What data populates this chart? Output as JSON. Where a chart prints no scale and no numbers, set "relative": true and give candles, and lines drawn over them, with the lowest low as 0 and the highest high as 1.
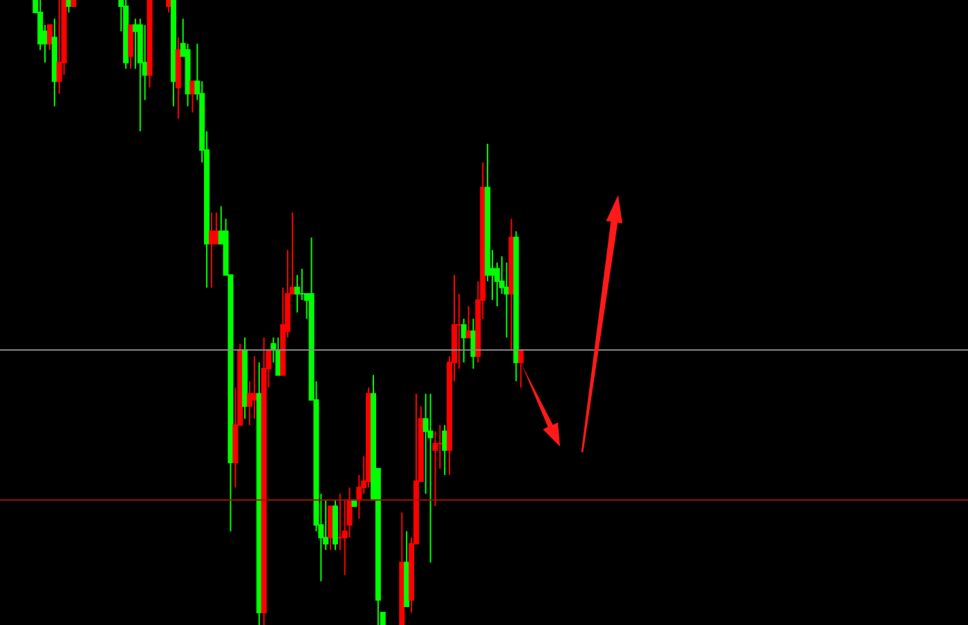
{
  "chart_data": {
    "type": "candlestick",
    "relative": true,
    "categories": [
      null,
      null,
      null,
      null,
      null,
      null,
      null,
      null,
      null,
      null,
      null,
      null,
      null,
      null,
      null,
      null,
      null,
      null,
      null,
      null,
      null,
      null,
      null,
      null,
      null,
      null,
      null,
      null,
      null,
      null,
      null,
      null,
      null,
      null,
      null,
      null,
      null,
      null,
      null,
      null,
      null,
      null,
      null,
      null,
      null,
      null,
      null,
      null,
      null,
      null,
      null,
      null,
      null,
      null,
      null,
      null,
      null,
      null,
      null,
      null,
      null,
      null,
      null,
      null,
      null,
      null,
      null,
      null,
      null,
      null,
      null,
      null,
      null,
      null,
      null,
      null,
      null,
      null,
      null,
      null,
      null,
      null,
      null,
      null,
      null,
      null,
      null,
      null,
      null,
      null,
      null,
      null,
      null,
      null,
      null,
      null,
      null,
      null,
      null,
      null,
      null,
      null,
      null
    ],
    "ohlc": [
      [
        1,
        1,
        0.98,
        0.98
      ],
      [
        0.98,
        1,
        0.92,
        0.93
      ],
      [
        0.95,
        0.96,
        0.9,
        0.93
      ],
      [
        0.93,
        0.96,
        0.92,
        0.96
      ],
      [
        0.94,
        0.97,
        0.83,
        0.87
      ],
      [
        0.87,
        1,
        0.85,
        0.9
      ],
      [
        0.9,
        1,
        0.88,
        1
      ],
      [
        1,
        1,
        0.98,
        0.99
      ],
      [
        0.99,
        1,
        0.99,
        1
      ],
      null,
      null,
      null,
      null,
      null,
      null,
      null,
      null,
      null,
      [
        1,
        1,
        0.95,
        0.99
      ],
      [
        0.99,
        1,
        0.89,
        0.9
      ],
      [
        0.91,
        0.96,
        0.89,
        0.96
      ],
      [
        0.96,
        0.97,
        0.89,
        0.95
      ],
      [
        0.96,
        0.97,
        0.79,
        0.9
      ],
      [
        0.9,
        0.96,
        0.84,
        0.88
      ],
      [
        0.88,
        1,
        0.86,
        1
      ],
      null,
      null,
      null,
      [
        0.99,
        1,
        0.98,
        1
      ],
      [
        1,
        1,
        0.83,
        0.87
      ],
      [
        0.86,
        0.94,
        0.81,
        0.92
      ],
      [
        0.93,
        0.97,
        0.91,
        0.91
      ],
      [
        0.92,
        0.93,
        0.83,
        0.85
      ],
      [
        0.85,
        0.87,
        0.82,
        0.87
      ],
      [
        0.87,
        0.93,
        0.84,
        0.85
      ],
      [
        0.85,
        0.87,
        0.74,
        0.76
      ],
      [
        0.76,
        0.79,
        0.54,
        0.61
      ],
      [
        0.61,
        0.66,
        0.54,
        0.63
      ],
      [
        0.61,
        0.66,
        0.61,
        0.63
      ],
      [
        0.63,
        0.67,
        0.61,
        0.61
      ],
      [
        0.63,
        0.65,
        0.56,
        0.56
      ],
      [
        0.56,
        0.56,
        0.15,
        0.26
      ],
      [
        0.26,
        0.38,
        0.22,
        0.32
      ],
      [
        0.32,
        0.45,
        0.32,
        0.44
      ],
      [
        0.44,
        0.46,
        0.33,
        0.35
      ],
      [
        0.35,
        0.39,
        0.32,
        0.37
      ],
      [
        0.36,
        0.43,
        0.33,
        0.37
      ],
      [
        0.37,
        0.42,
        0,
        0.02
      ],
      [
        0.02,
        0.46,
        0,
        0.41
      ],
      [
        0.41,
        0.44,
        0.38,
        0.44
      ],
      [
        0.45,
        0.46,
        0.42,
        0.44
      ],
      [
        0.44,
        0.46,
        0.4,
        0.4
      ],
      [
        0.4,
        0.54,
        0.4,
        0.48
      ],
      [
        0.47,
        0.6,
        0.46,
        0.53
      ],
      [
        0.53,
        0.66,
        0.53,
        0.54
      ],
      [
        0.54,
        0.56,
        0.5,
        0.53
      ],
      [
        0.53,
        0.57,
        0.52,
        0.53
      ],
      [
        0.53,
        0.53,
        0.49,
        0.52
      ],
      [
        0.53,
        0.62,
        0.36,
        0.36
      ],
      [
        0.36,
        0.39,
        0.15,
        0.16
      ],
      [
        0.16,
        0.21,
        0.07,
        0.14
      ],
      [
        0.14,
        0.2,
        0.12,
        0.13
      ],
      [
        0.14,
        0.19,
        0.12,
        0.19
      ],
      [
        0.19,
        0.2,
        0.12,
        0.13
      ],
      [
        0.14,
        0.21,
        0.12,
        0.14
      ],
      [
        0.14,
        0.2,
        0.08,
        0.15
      ],
      [
        0.16,
        0.22,
        0.14,
        0.2
      ],
      [
        0.2,
        0.2,
        0.19,
        0.19
      ],
      [
        0.2,
        0.24,
        0.17,
        0.22
      ],
      [
        0.22,
        0.27,
        0.21,
        0.23
      ],
      [
        0.23,
        0.38,
        0.22,
        0.37
      ],
      [
        0.37,
        0.4,
        0.2,
        0.2
      ],
      [
        0.25,
        0.25,
        0,
        0.04
      ],
      [
        0.02,
        0.02,
        0,
        0
      ],
      null,
      null,
      null,
      [
        0,
        0.18,
        0,
        0.1
      ],
      [
        0.1,
        0.15,
        0.03,
        0.03
      ],
      [
        0.04,
        0.14,
        0.02,
        0.13
      ],
      [
        0.13,
        0.37,
        0.13,
        0.23
      ],
      [
        0.23,
        0.35,
        0.23,
        0.33
      ],
      [
        0.33,
        0.37,
        0.21,
        0.31
      ],
      [
        0.31,
        0.37,
        0.1,
        0.3
      ],
      [
        0.28,
        0.31,
        0.19,
        0.29
      ],
      [
        0.29,
        0.32,
        0.25,
        0.29
      ],
      [
        0.31,
        0.32,
        0.24,
        0.28
      ],
      [
        0.28,
        0.43,
        0.24,
        0.42
      ],
      [
        0.42,
        0.56,
        0.39,
        0.48
      ],
      [
        0.48,
        0.53,
        0.41,
        0.48
      ],
      [
        0.48,
        0.49,
        0.42,
        0.46
      ],
      [
        0.46,
        0.51,
        0.46,
        0.47
      ],
      [
        0.47,
        0.49,
        0.41,
        0.43
      ],
      [
        0.43,
        0.55,
        0.42,
        0.52
      ],
      [
        0.52,
        0.74,
        0.49,
        0.7
      ],
      [
        0.7,
        0.77,
        0.55,
        0.56
      ],
      [
        0.57,
        0.6,
        0.52,
        0.56
      ],
      [
        0.57,
        0.58,
        0.51,
        0.55
      ],
      [
        0.55,
        0.59,
        0.53,
        0.54
      ],
      [
        0.54,
        0.58,
        0.46,
        0.53
      ],
      [
        0.53,
        0.65,
        0.44,
        0.62
      ],
      [
        0.62,
        0.63,
        0.39,
        0.42
      ],
      [
        0.42,
        0.44,
        0.38,
        0.44
      ]
    ],
    "colors": [
      "#00ff00",
      "#00ff00",
      "#00ff00",
      "#ff0000",
      "#00ff00",
      "#ff0000",
      "#ff0000",
      "#00ff00",
      "#ff0000",
      null,
      null,
      null,
      null,
      null,
      null,
      null,
      null,
      null,
      "#00ff00",
      "#00ff00",
      "#ff0000",
      "#00ff00",
      "#00ff00",
      "#00ff00",
      "#ff0000",
      null,
      null,
      null,
      "#ff0000",
      "#00ff00",
      "#ff0000",
      "#00ff00",
      "#00ff00",
      "#ff0000",
      "#00ff00",
      "#00ff00",
      "#00ff00",
      "#ff0000",
      "#ff0000",
      "#00ff00",
      "#00ff00",
      "#00ff00",
      "#ff0000",
      "#ff0000",
      "#00ff00",
      "#ff0000",
      "#ff0000",
      "#00ff00",
      "#ff0000",
      "#ff0000",
      "#00ff00",
      "#00ff00",
      "#ff0000",
      "#ff0000",
      "#ff0000",
      "#00ff00",
      "#00ff00",
      "#00ff00",
      "#00ff00",
      "#00ff00",
      "#00ff00",
      "#00ff00",
      "#ff0000",
      "#00ff00",
      "#ff0000",
      "#ff0000",
      "#ff0000",
      "#00ff00",
      "#ff0000",
      "#ff0000",
      "#ff0000",
      "#00ff00",
      "#00ff00",
      "#00ff00",
      null,
      null,
      null,
      "#ff0000",
      "#00ff00",
      "#ff0000",
      "#ff0000",
      "#ff0000",
      "#00ff00",
      "#00ff00",
      "#ff0000",
      "#ff0000",
      "#00ff00",
      "#ff0000",
      "#ff0000",
      "#ff0000",
      "#00ff00",
      "#ff0000",
      "#00ff00",
      "#ff0000",
      "#ff0000",
      "#00ff00",
      "#00ff00",
      "#00ff00",
      "#00ff00",
      "#00ff00",
      "#ff0000",
      "#00ff00",
      "#ff0000"
    ],
    "ref_lines": [
      {
        "axis": "y",
        "value": 0.44,
        "color": "#8c8c8c"
      },
      {
        "axis": "y",
        "value": 0.2,
        "color": "#a01010"
      }
    ]
  }
}
